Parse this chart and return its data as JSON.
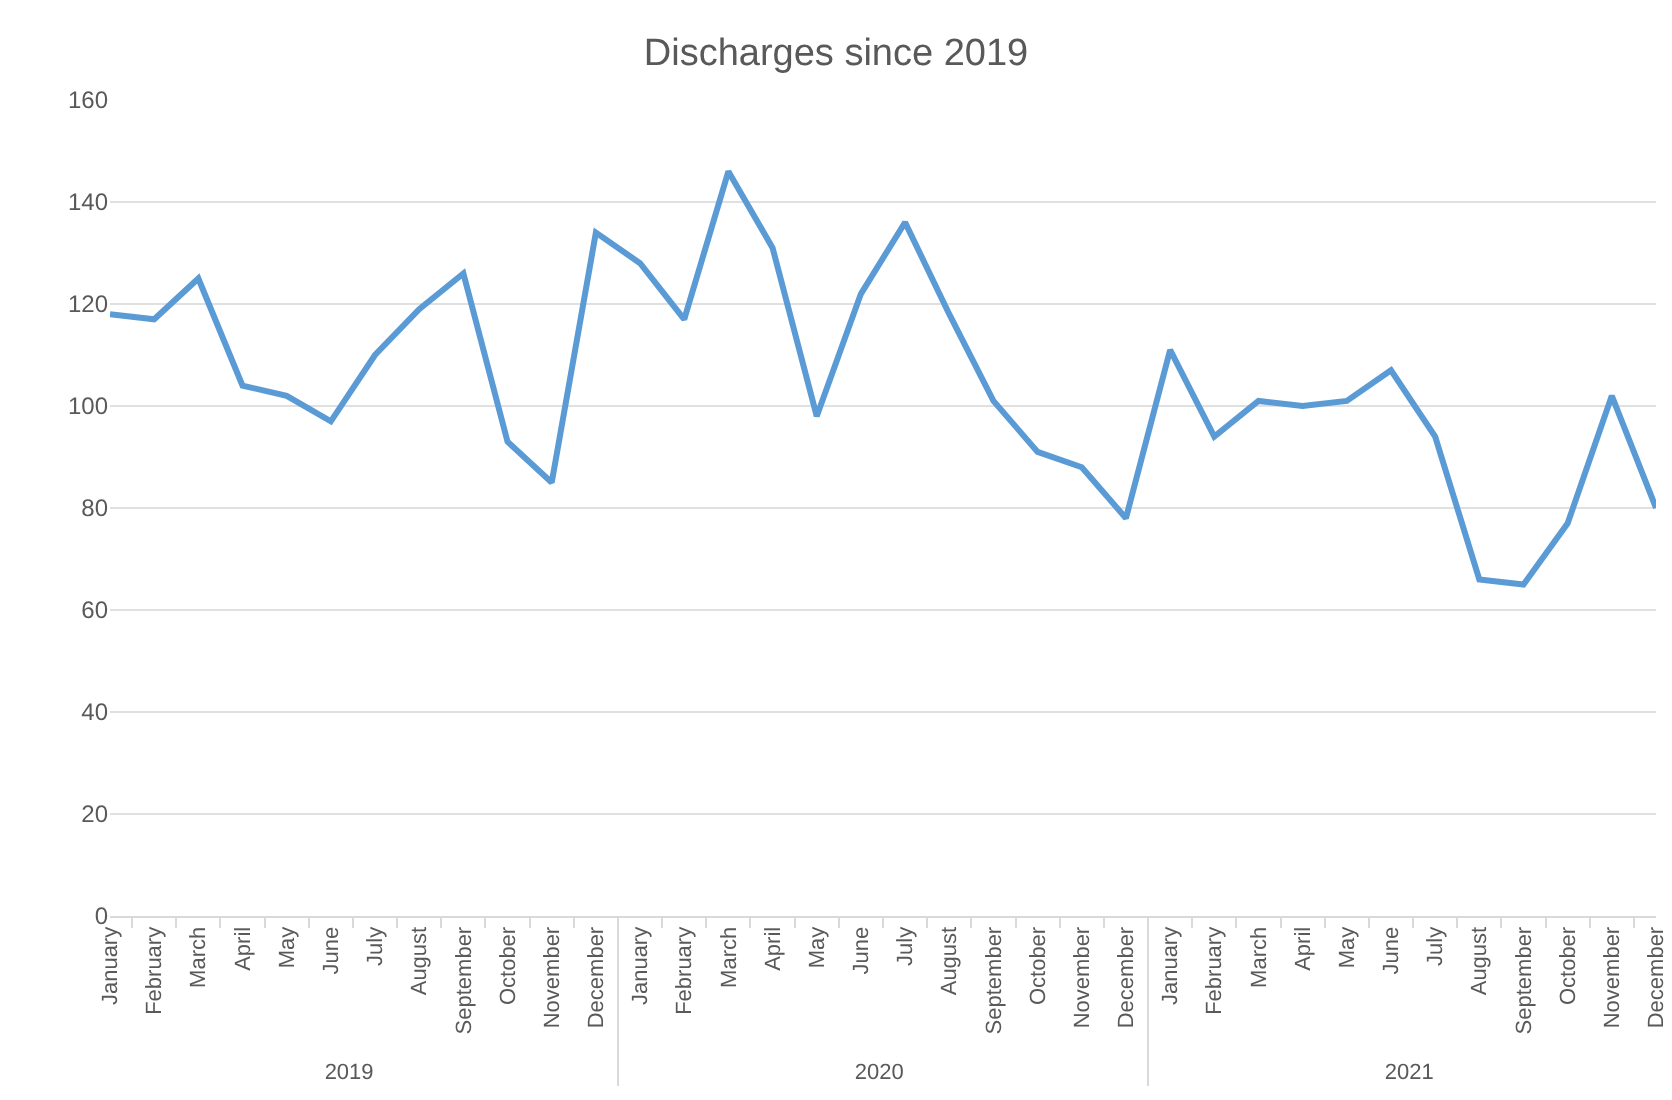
{
  "chart_data": {
    "type": "line",
    "title": "Discharges since 2019",
    "categories": [
      "January",
      "February",
      "March",
      "April",
      "May",
      "June",
      "July",
      "August",
      "September",
      "October",
      "November",
      "December",
      "January",
      "February",
      "March",
      "April",
      "May",
      "June",
      "July",
      "August",
      "September",
      "October",
      "November",
      "December",
      "January",
      "February",
      "March",
      "April",
      "May",
      "June",
      "July",
      "August",
      "September",
      "October",
      "November",
      "December"
    ],
    "series": [
      {
        "color": "#5b9bd5",
        "values": [
          118,
          117,
          125,
          104,
          102,
          97,
          110,
          119,
          126,
          93,
          85,
          134,
          128,
          117,
          146,
          131,
          98,
          122,
          136,
          118,
          101,
          91,
          88,
          78,
          111,
          94,
          101,
          100,
          101,
          107,
          94,
          66,
          65,
          77,
          102,
          80
        ]
      }
    ],
    "annotations": [
      "2019",
      "2020",
      "2021"
    ],
    "ylim": [
      0,
      160
    ],
    "yticks": [
      0,
      20,
      40,
      60,
      80,
      100,
      120,
      140,
      160
    ],
    "grid": "y",
    "marker": "none",
    "line_style": "solid"
  }
}
